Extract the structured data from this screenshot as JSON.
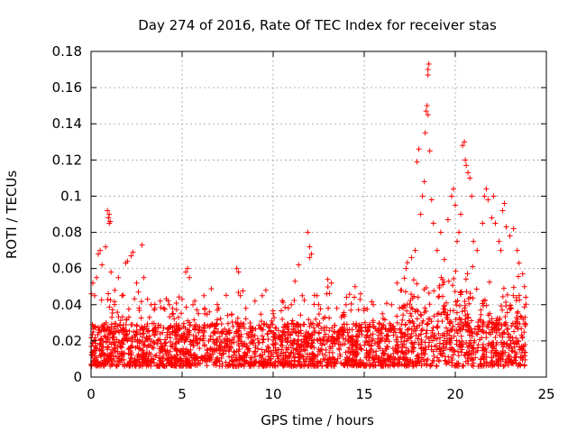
{
  "chart_data": {
    "type": "scatter",
    "title": "Day 274 of 2016, Rate Of TEC Index for receiver stas",
    "xlabel": "GPS time / hours",
    "ylabel": "ROTI / TECUs",
    "xlim": [
      0,
      25
    ],
    "ylim": [
      0,
      0.18
    ],
    "xticks": [
      0,
      5,
      10,
      15,
      20,
      25
    ],
    "yticks": [
      0,
      0.02,
      0.04,
      0.06,
      0.08,
      0.1,
      0.12,
      0.14,
      0.16,
      0.18
    ],
    "xtick_labels": [
      "0",
      "5",
      "10",
      "15",
      "20",
      "25"
    ],
    "ytick_labels": [
      "0",
      "0.02",
      "0.04",
      "0.06",
      "0.08",
      "0.1",
      "0.12",
      "0.14",
      "0.16",
      "0.18"
    ],
    "grid": true,
    "marker": "+",
    "color": "#ff0000",
    "series": [
      {
        "name": "ROTI",
        "points": [
          [
            0.1,
            0.052
          ],
          [
            0.2,
            0.045
          ],
          [
            0.3,
            0.055
          ],
          [
            0.4,
            0.068
          ],
          [
            0.5,
            0.07
          ],
          [
            0.6,
            0.062
          ],
          [
            0.8,
            0.072
          ],
          [
            0.9,
            0.092
          ],
          [
            0.95,
            0.088
          ],
          [
            1.0,
            0.085
          ],
          [
            1.0,
            0.09
          ],
          [
            1.05,
            0.086
          ],
          [
            1.1,
            0.058
          ],
          [
            1.3,
            0.048
          ],
          [
            1.5,
            0.055
          ],
          [
            1.7,
            0.045
          ],
          [
            1.9,
            0.063
          ],
          [
            2.0,
            0.064
          ],
          [
            2.2,
            0.067
          ],
          [
            2.3,
            0.069
          ],
          [
            2.5,
            0.052
          ],
          [
            2.6,
            0.047
          ],
          [
            2.8,
            0.073
          ],
          [
            2.9,
            0.055
          ],
          [
            3.1,
            0.043
          ],
          [
            3.3,
            0.04
          ],
          [
            3.5,
            0.038
          ],
          [
            3.8,
            0.042
          ],
          [
            4.0,
            0.038
          ],
          [
            4.3,
            0.04
          ],
          [
            4.5,
            0.035
          ],
          [
            4.8,
            0.033
          ],
          [
            5.0,
            0.043
          ],
          [
            5.2,
            0.058
          ],
          [
            5.3,
            0.06
          ],
          [
            5.4,
            0.055
          ],
          [
            5.6,
            0.04
          ],
          [
            5.9,
            0.035
          ],
          [
            6.2,
            0.045
          ],
          [
            6.5,
            0.036
          ],
          [
            7.0,
            0.038
          ],
          [
            7.5,
            0.034
          ],
          [
            8.0,
            0.06
          ],
          [
            8.1,
            0.058
          ],
          [
            8.2,
            0.045
          ],
          [
            8.5,
            0.038
          ],
          [
            9.0,
            0.042
          ],
          [
            9.4,
            0.045
          ],
          [
            9.6,
            0.048
          ],
          [
            10.0,
            0.035
          ],
          [
            10.5,
            0.032
          ],
          [
            11.0,
            0.04
          ],
          [
            11.2,
            0.053
          ],
          [
            11.4,
            0.062
          ],
          [
            11.6,
            0.045
          ],
          [
            11.9,
            0.08
          ],
          [
            12.0,
            0.072
          ],
          [
            12.0,
            0.066
          ],
          [
            12.1,
            0.068
          ],
          [
            12.5,
            0.04
          ],
          [
            13.0,
            0.054
          ],
          [
            13.2,
            0.052
          ],
          [
            13.5,
            0.038
          ],
          [
            14.0,
            0.04
          ],
          [
            14.5,
            0.05
          ],
          [
            14.8,
            0.046
          ],
          [
            15.0,
            0.038
          ],
          [
            15.5,
            0.04
          ],
          [
            16.0,
            0.035
          ],
          [
            16.5,
            0.04
          ],
          [
            16.8,
            0.052
          ],
          [
            17.0,
            0.048
          ],
          [
            17.3,
            0.06
          ],
          [
            17.6,
            0.066
          ],
          [
            17.8,
            0.07
          ],
          [
            17.9,
            0.119
          ],
          [
            18.0,
            0.126
          ],
          [
            18.1,
            0.09
          ],
          [
            18.2,
            0.1
          ],
          [
            18.3,
            0.108
          ],
          [
            18.35,
            0.135
          ],
          [
            18.4,
            0.147
          ],
          [
            18.45,
            0.15
          ],
          [
            18.5,
            0.145
          ],
          [
            18.5,
            0.17
          ],
          [
            18.5,
            0.167
          ],
          [
            18.55,
            0.173
          ],
          [
            18.6,
            0.125
          ],
          [
            18.7,
            0.098
          ],
          [
            18.8,
            0.085
          ],
          [
            19.0,
            0.07
          ],
          [
            19.2,
            0.08
          ],
          [
            19.4,
            0.065
          ],
          [
            19.6,
            0.087
          ],
          [
            19.8,
            0.1
          ],
          [
            19.9,
            0.104
          ],
          [
            20.0,
            0.095
          ],
          [
            20.1,
            0.075
          ],
          [
            20.2,
            0.08
          ],
          [
            20.3,
            0.09
          ],
          [
            20.4,
            0.128
          ],
          [
            20.5,
            0.13
          ],
          [
            20.55,
            0.12
          ],
          [
            20.6,
            0.117
          ],
          [
            20.7,
            0.113
          ],
          [
            20.8,
            0.11
          ],
          [
            20.9,
            0.1
          ],
          [
            21.0,
            0.075
          ],
          [
            21.2,
            0.07
          ],
          [
            21.5,
            0.085
          ],
          [
            21.6,
            0.1
          ],
          [
            21.7,
            0.104
          ],
          [
            21.8,
            0.098
          ],
          [
            22.0,
            0.088
          ],
          [
            22.1,
            0.1
          ],
          [
            22.2,
            0.085
          ],
          [
            22.4,
            0.075
          ],
          [
            22.5,
            0.07
          ],
          [
            22.6,
            0.092
          ],
          [
            22.7,
            0.096
          ],
          [
            22.8,
            0.083
          ],
          [
            23.0,
            0.078
          ],
          [
            23.2,
            0.082
          ],
          [
            23.4,
            0.07
          ],
          [
            23.5,
            0.063
          ],
          [
            23.7,
            0.057
          ],
          [
            23.8,
            0.05
          ]
        ],
        "dense_band": {
          "x_from": 0,
          "x_to": 23.9,
          "y_from": 0.002,
          "y_to": 0.03
        }
      }
    ]
  }
}
